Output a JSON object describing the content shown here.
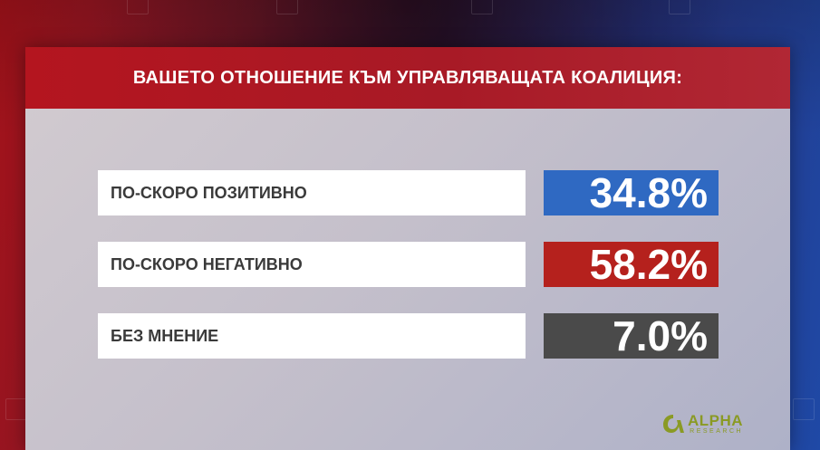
{
  "header": {
    "title": "ВАШЕТО ОТНОШЕНИЕ КЪМ УПРАВЛЯВАЩАТА КОАЛИЦИЯ:"
  },
  "colors": {
    "header_red": "#b4151f",
    "positive_blue": "#2f69c2",
    "negative_red": "#b5211d",
    "neutral_gray": "#4a4a4a"
  },
  "chart_data": {
    "type": "table",
    "title": "ВАШЕТО ОТНОШЕНИЕ КЪМ УПРАВЛЯВАЩАТА КОАЛИЦИЯ:",
    "categories": [
      "ПО-СКОРО ПОЗИТИВНО",
      "ПО-СКОРО НЕГАТИВНО",
      "БЕЗ МНЕНИЕ"
    ],
    "values": [
      34.8,
      58.2,
      7.0
    ],
    "rows": [
      {
        "label": "ПО-СКОРО ПОЗИТИВНО",
        "value": 34.8,
        "display": "34.8%",
        "color": "#2f69c2"
      },
      {
        "label": "ПО-СКОРО НЕГАТИВНО",
        "value": 58.2,
        "display": "58.2%",
        "color": "#b5211d"
      },
      {
        "label": "БЕЗ МНЕНИЕ",
        "value": 7.0,
        "display": "7.0%",
        "color": "#4a4a4a"
      }
    ]
  },
  "logo": {
    "main": "ALPHA",
    "sub": "RESEARCH",
    "icon": "alpha-logo-icon"
  }
}
